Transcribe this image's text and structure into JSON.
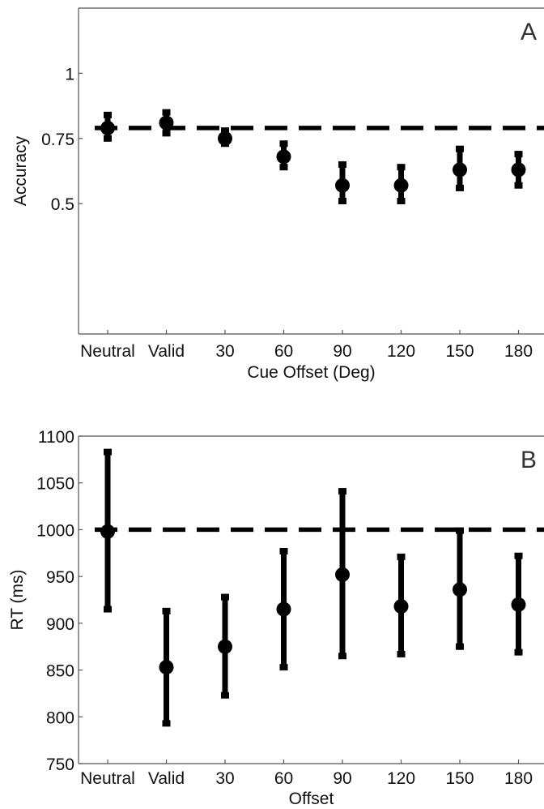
{
  "chart_data": [
    {
      "type": "scatter",
      "panel_label": "A",
      "xlabel": "Cue Offset (Deg)",
      "ylabel": "Accuracy",
      "categories": [
        "Neutral",
        "Valid",
        "30",
        "60",
        "90",
        "120",
        "150",
        "180"
      ],
      "ylim": [
        0.0,
        1.25
      ],
      "yticks": [
        0.5,
        0.75,
        1
      ],
      "ytick_labels": [
        "0.5",
        "0.75",
        "1"
      ],
      "values": [
        0.79,
        0.81,
        0.75,
        0.68,
        0.57,
        0.57,
        0.63,
        0.63
      ],
      "err_low": [
        0.75,
        0.77,
        0.73,
        0.64,
        0.51,
        0.51,
        0.56,
        0.57
      ],
      "err_high": [
        0.84,
        0.85,
        0.78,
        0.73,
        0.65,
        0.64,
        0.71,
        0.69
      ],
      "reference_line": 0.79,
      "grid": false
    },
    {
      "type": "scatter",
      "panel_label": "B",
      "xlabel": "Offset",
      "ylabel": "RT (ms)",
      "categories": [
        "Neutral",
        "Valid",
        "30",
        "60",
        "90",
        "120",
        "150",
        "180"
      ],
      "ylim": [
        750,
        1100
      ],
      "yticks": [
        750,
        800,
        850,
        900,
        950,
        1000,
        1050,
        1100
      ],
      "ytick_labels": [
        "750",
        "800",
        "850",
        "900",
        "950",
        "1000",
        "1050",
        "1100"
      ],
      "values": [
        998,
        853,
        875,
        915,
        952,
        918,
        936,
        920
      ],
      "err_low": [
        915,
        793,
        823,
        853,
        865,
        867,
        875,
        869
      ],
      "err_high": [
        1083,
        913,
        928,
        977,
        1041,
        971,
        999,
        972
      ],
      "reference_line": 1000,
      "grid": false
    }
  ]
}
